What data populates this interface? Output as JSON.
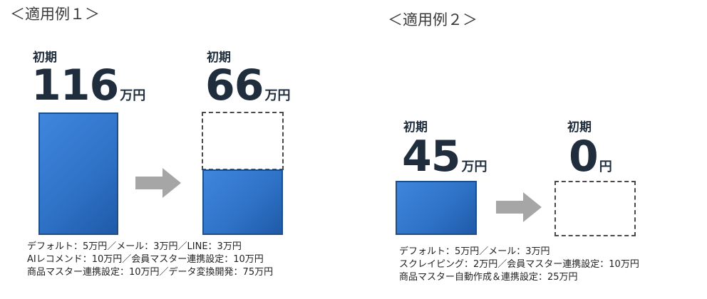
{
  "example1": {
    "title": "＜適用例１＞",
    "before": {
      "label": "初期",
      "amount": "116",
      "unit": "万円"
    },
    "after": {
      "label": "初期",
      "amount": "66",
      "unit": "万円"
    },
    "breakdown": [
      "デフォルト：5万円／メール：3万円／LINE：3万円",
      "AIレコメンド：10万円／会員マスター連携設定：10万円",
      "商品マスター連携設定：10万円／データ変換開発：75万円"
    ]
  },
  "example2": {
    "title": "＜適用例２＞",
    "before": {
      "label": "初期",
      "amount": "45",
      "unit": "万円"
    },
    "after": {
      "label": "初期",
      "amount": "0",
      "unit": "円"
    },
    "breakdown": [
      "デフォルト：5万円／メール：3万円",
      "スクレイピング：2万円／会員マスター連携設定：10万円",
      "商品マスター自動作成＆連携設定：25万円"
    ]
  },
  "colors": {
    "bar_fill": "#2f73c8",
    "bar_border": "#1d4e89",
    "arrow": "#a6a6a6",
    "dashed_border": "#4a4a4a"
  },
  "chart_data": [
    {
      "type": "bar",
      "title": "＜適用例１＞",
      "categories": [
        "初期",
        "初期"
      ],
      "values": [
        116,
        66
      ],
      "unit": "万円",
      "reduced_from": 116
    },
    {
      "type": "bar",
      "title": "＜適用例２＞",
      "categories": [
        "初期",
        "初期"
      ],
      "values": [
        45,
        0
      ],
      "unit": "万円",
      "reduced_from": 45
    }
  ]
}
